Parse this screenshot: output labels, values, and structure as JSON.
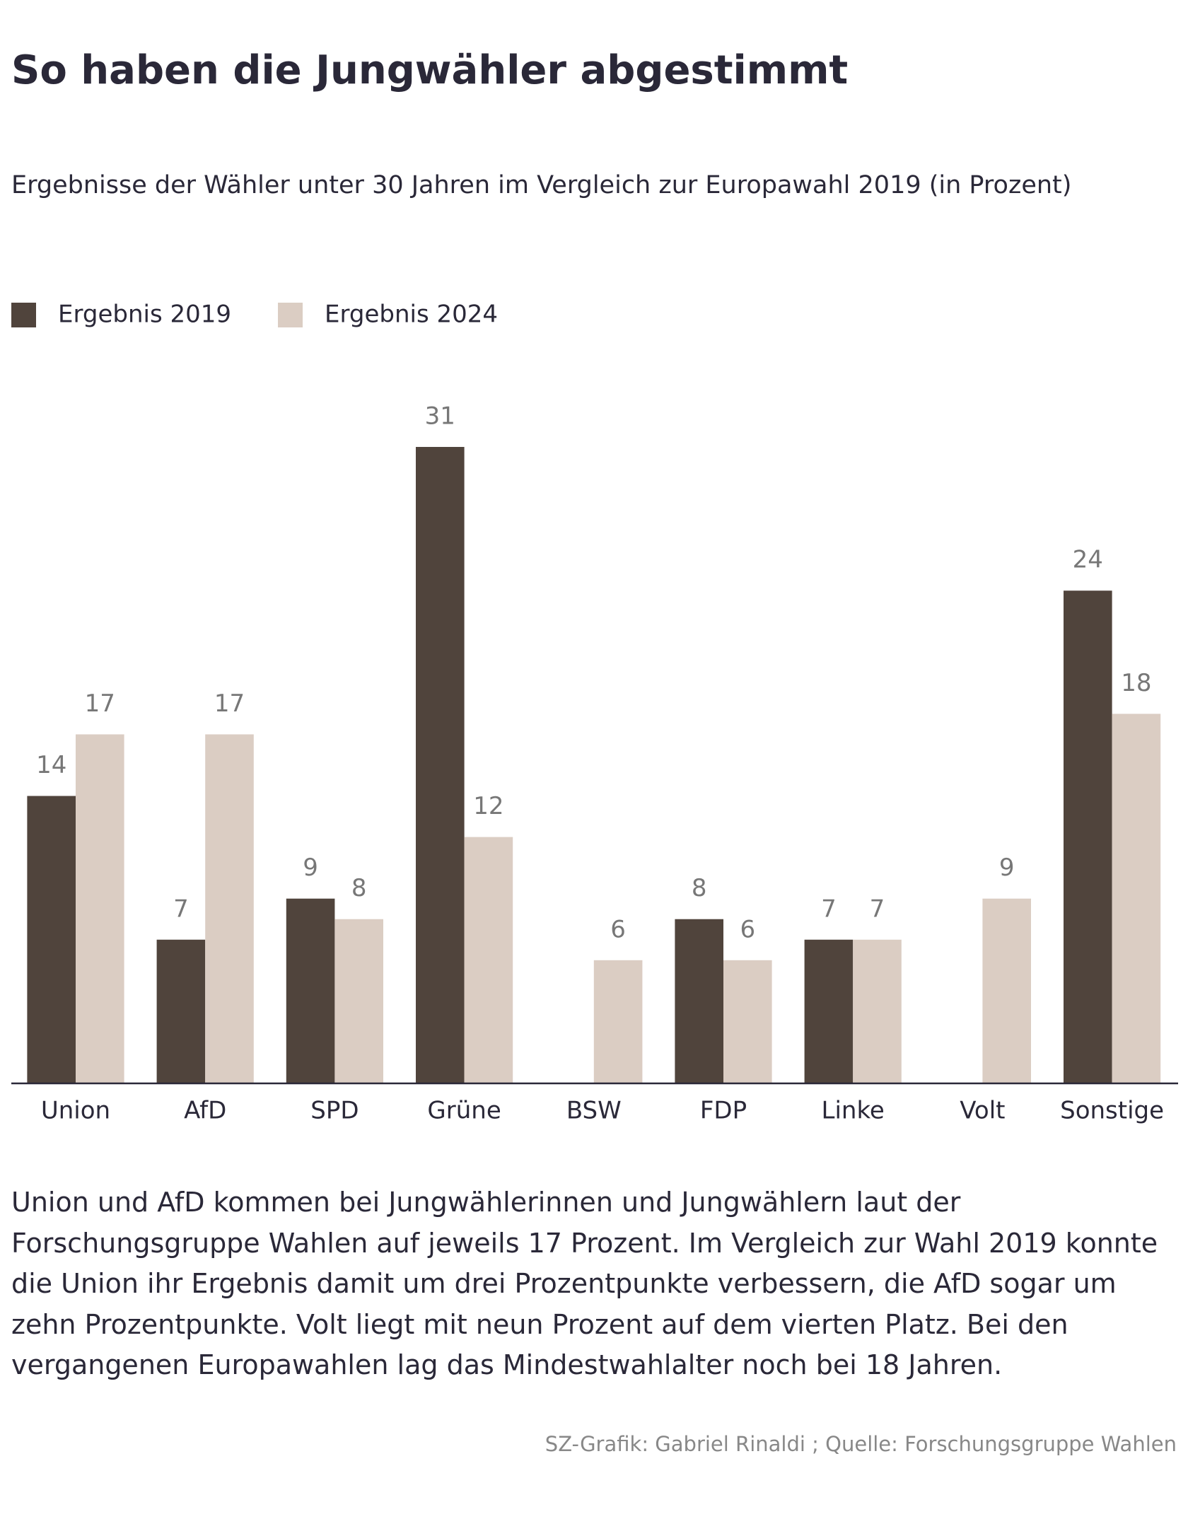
{
  "chart_data": {
    "type": "bar",
    "title": "So haben die Jungwähler abgestimmt",
    "subtitle": "Ergebnisse der Wähler unter 30 Jahren im Vergleich zur Europawahl 2019 (in Prozent)",
    "categories": [
      "Union",
      "AfD",
      "SPD",
      "Grüne",
      "BSW",
      "FDP",
      "Linke",
      "Volt",
      "Sonstige"
    ],
    "series": [
      {
        "name": "Ergebnis 2019",
        "color": "#50443c",
        "values": [
          14,
          7,
          9,
          31,
          null,
          8,
          7,
          null,
          24
        ]
      },
      {
        "name": "Ergebnis 2024",
        "color": "#dbcdc3",
        "values": [
          17,
          17,
          8,
          12,
          6,
          6,
          7,
          9,
          18
        ]
      }
    ],
    "note": "Union und AfD kommen bei Jungwählerinnen und Jungwählern laut der Forschungsgruppe Wahlen auf jeweils 17 Prozent. Im Vergleich zur Wahl 2019 konnte die Union ihr Ergebnis damit um drei Prozentpunkte verbessern, die AfD sogar um zehn Prozentpunkte. Volt liegt mit neun Prozent auf dem vierten Platz. Bei den vergangenen Europawahlen lag das Mindestwahlalter noch bei 18 Jahren.",
    "source": "SZ-Grafik: Gabriel Rinaldi ; Quelle: Forschungsgruppe Wahlen"
  }
}
